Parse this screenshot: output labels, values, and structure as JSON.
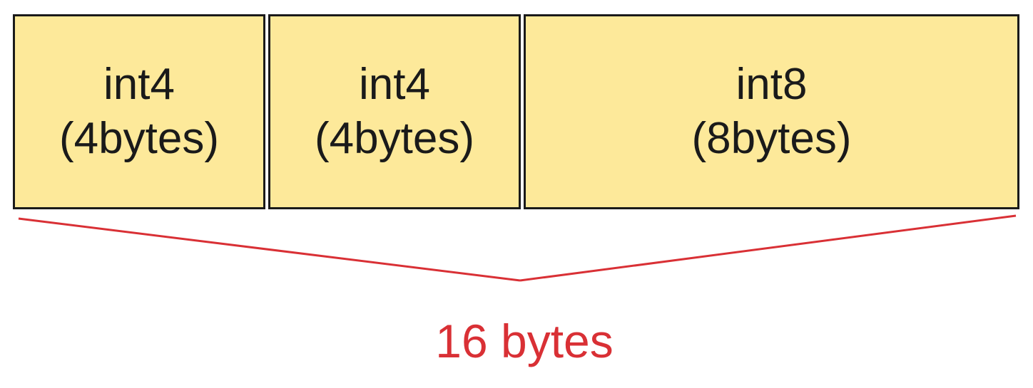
{
  "fields": [
    {
      "type": "int4",
      "size": "(4bytes)"
    },
    {
      "type": "int4",
      "size": "(4bytes)"
    },
    {
      "type": "int8",
      "size": "(8bytes)"
    }
  ],
  "total": {
    "label": "16 bytes"
  },
  "colors": {
    "field_fill": "#fde99a",
    "field_border": "#1a1a1a",
    "text": "#1a1a1a",
    "accent": "#d93035"
  }
}
